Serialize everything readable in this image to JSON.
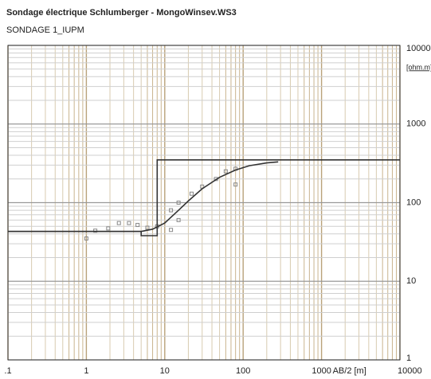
{
  "chart_data": {
    "type": "loglog",
    "title": "Sondage électrique Schlumberger - MongoWinsev.WS3",
    "subtitle": "SONDAGE 1_IUPM",
    "xlabel": "AB/2 [m]",
    "ylabel": "[ohm.m]",
    "xlim": [
      0.1,
      10000
    ],
    "ylim": [
      1,
      10000
    ],
    "xticks": [
      {
        "value": 0.1,
        "label": ".1"
      },
      1,
      10,
      100,
      1000,
      10000
    ],
    "yticks": [
      1,
      10,
      100,
      1000,
      10000
    ],
    "log_x": true,
    "log_y": true,
    "grid": true,
    "series": [
      {
        "kind": "points",
        "color": "#888888",
        "x": [
          1,
          1.3,
          1.9,
          2.6,
          3.5,
          4.5,
          6,
          8,
          12,
          12,
          15,
          15,
          22,
          30,
          45,
          60,
          80,
          80
        ],
        "values": [
          35,
          44,
          47,
          55,
          55,
          52,
          48,
          50,
          45,
          80,
          60,
          100,
          130,
          160,
          200,
          250,
          270,
          170
        ]
      },
      {
        "kind": "line",
        "color": "#333333",
        "x": [
          0.1,
          5,
          5,
          8,
          8,
          10000
        ],
        "values": [
          43,
          43,
          38,
          38,
          350,
          350
        ]
      },
      {
        "kind": "line",
        "color": "#333333",
        "x": [
          0.1,
          1,
          3,
          5,
          7,
          10,
          15,
          20,
          30,
          50,
          80,
          120,
          200,
          280
        ],
        "values": [
          43,
          43,
          43,
          43,
          46,
          55,
          80,
          105,
          150,
          210,
          260,
          295,
          320,
          330
        ]
      }
    ]
  }
}
